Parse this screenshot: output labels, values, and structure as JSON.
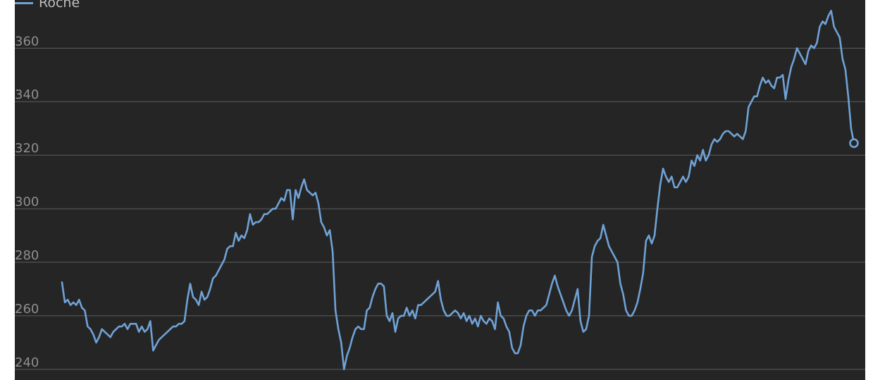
{
  "chart_data": {
    "type": "line",
    "legend": {
      "placement": "top-left"
    },
    "grid": true,
    "colors": {
      "background": "#252525",
      "grid": "#5d5d5d",
      "series": "#6fa2d6",
      "tick_text": "#8e8e8e"
    },
    "ylim": [
      236,
      378
    ],
    "yticks": [
      240,
      260,
      280,
      300,
      320,
      340,
      360
    ],
    "series": [
      {
        "name": "Roche",
        "values": [
          272.5,
          265,
          266,
          264,
          265,
          264,
          266,
          263,
          262,
          256,
          255,
          253,
          250,
          252,
          255,
          254,
          253,
          252,
          254,
          255,
          256,
          256,
          257,
          255,
          257,
          257,
          257,
          254,
          256,
          254,
          255,
          258,
          247,
          249,
          251,
          252,
          253,
          254,
          255,
          256,
          256,
          257,
          257,
          258,
          266,
          272,
          267,
          266,
          264,
          269,
          266,
          267,
          270,
          274,
          275,
          277,
          279,
          281,
          285,
          286,
          286,
          291,
          288,
          290,
          289,
          292,
          298,
          294,
          295,
          295,
          296,
          298,
          298,
          299,
          300,
          300,
          302,
          304,
          303,
          307,
          307,
          296,
          307,
          304,
          308,
          311,
          307,
          306,
          305,
          306,
          302,
          295,
          293,
          290,
          292,
          284,
          262,
          255,
          250,
          240,
          245,
          248,
          252,
          255,
          256,
          255,
          255,
          262,
          263,
          267,
          270,
          272,
          272,
          271,
          260,
          258,
          261,
          254,
          259,
          260,
          260,
          263,
          260,
          262,
          259,
          264,
          264,
          265,
          266,
          267,
          268,
          269,
          273,
          266,
          262,
          260,
          260,
          261,
          262,
          261,
          259,
          261,
          258,
          260,
          257,
          259,
          256,
          260,
          258,
          257,
          259,
          258,
          255,
          265,
          260,
          259,
          256,
          254,
          248,
          246,
          246,
          249,
          256,
          260,
          262,
          262,
          260,
          262,
          262,
          263,
          264,
          268,
          272,
          275,
          271,
          268,
          265,
          262,
          260,
          262,
          266,
          270,
          258,
          254,
          255,
          260,
          282,
          286,
          288,
          289,
          294,
          290,
          286,
          284,
          282,
          280,
          272,
          268,
          262,
          260,
          260,
          262,
          265,
          270,
          276,
          288,
          290,
          287,
          290,
          300,
          309,
          315,
          312,
          310,
          312,
          308,
          308,
          310,
          312,
          310,
          312,
          318,
          316,
          320,
          318,
          322,
          318,
          320,
          324,
          326,
          325,
          326,
          328,
          329,
          329,
          328,
          327,
          328,
          327,
          326,
          329,
          338,
          340,
          342,
          342,
          346,
          349,
          347,
          348,
          346,
          345,
          349,
          349,
          350,
          341,
          348,
          353,
          356,
          360,
          358,
          356,
          354,
          359,
          361,
          360,
          362,
          368,
          370,
          369,
          372,
          374,
          368,
          366,
          364,
          356,
          352,
          342,
          330,
          324.5
        ]
      }
    ]
  }
}
